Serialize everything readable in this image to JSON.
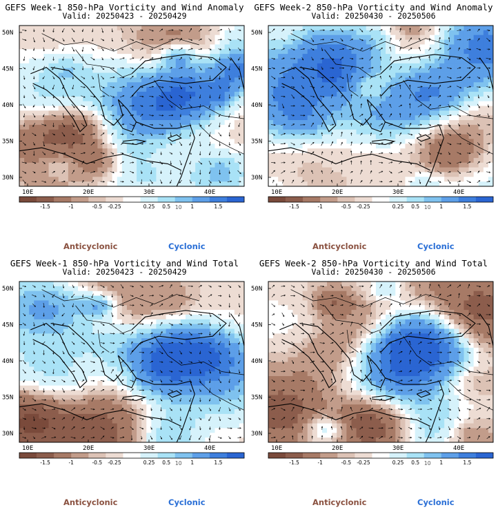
{
  "panels": [
    {
      "title": "GEFS Week-1 850-hPa Vorticity and Wind Anomaly",
      "valid": "Valid: 20250423 - 20250429",
      "variant": 1
    },
    {
      "title": "GEFS Week-2 850-hPa Vorticity and Wind Anomaly",
      "valid": "Valid: 20250430 - 20250506",
      "variant": 2
    },
    {
      "title": "GEFS Week-1 850-hPa Vorticity and Wind Total",
      "valid": "Valid: 20250423 - 20250429",
      "variant": 3
    },
    {
      "title": "GEFS Week-2 850-hPa Vorticity and Wind Total",
      "valid": "Valid: 20250430 - 20250506",
      "variant": 4
    }
  ],
  "axes": {
    "lat_labels": [
      "50N",
      "45N",
      "40N",
      "35N",
      "30N"
    ],
    "lon_labels": [
      "10E",
      "20E",
      "30E",
      "40E"
    ]
  },
  "colorbar": {
    "ticks": [
      "-1.5",
      "-1",
      "-0.5",
      "-0.25",
      "0.25",
      "0.5",
      "1",
      "1.5"
    ],
    "unit_label": "10",
    "colors": [
      "#7a4a3b",
      "#8c5d4c",
      "#a77a66",
      "#c29c8a",
      "#dcc2b5",
      "#eddcd3",
      "#ffffff",
      "#d6f2fb",
      "#a9e2f6",
      "#7fc2ef",
      "#5d9fe8",
      "#3e7fdd",
      "#2a65d2"
    ]
  },
  "legend": {
    "anticyclonic": "Anticyclonic",
    "cyclonic": "Cyclonic"
  }
}
